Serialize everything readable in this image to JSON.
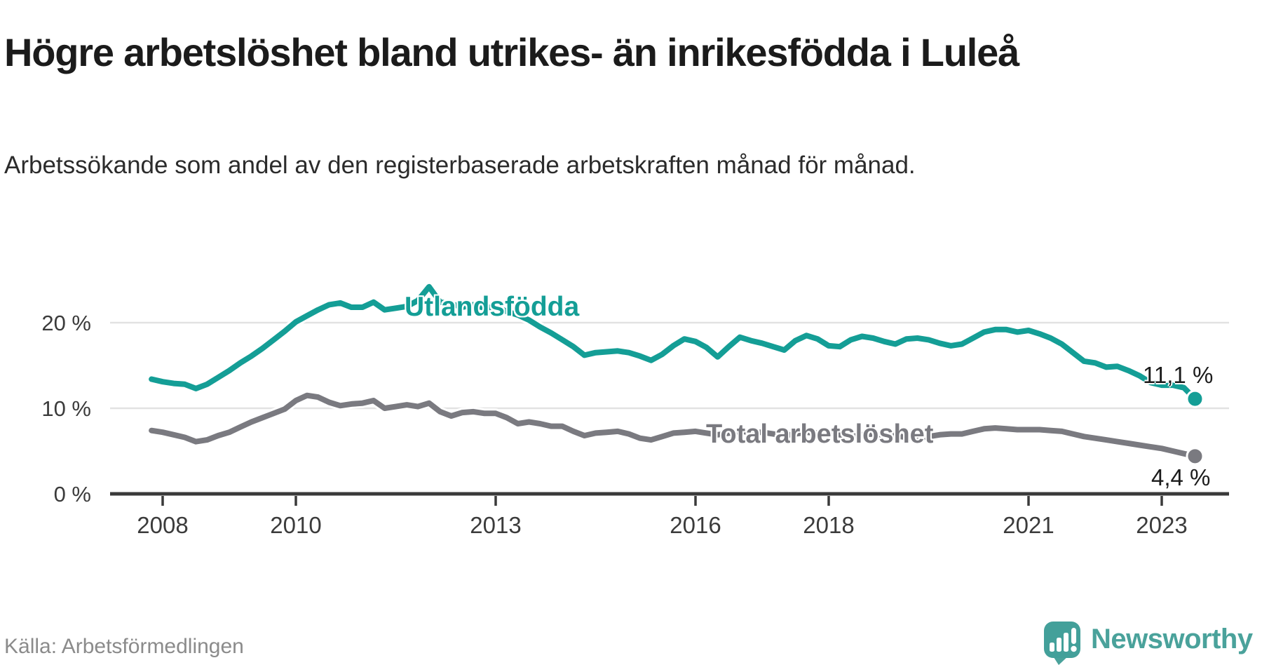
{
  "header": {
    "title": "Högre arbetslöshet bland utrikes- än inrikesfödda i Luleå",
    "subtitle": "Arbetssökande som andel av den registerbaserade arbetskraften månad för månad."
  },
  "footer": {
    "source": "Källa: Arbetsförmedlingen",
    "brand_name": "Newsworthy"
  },
  "colors": {
    "accent_teal": "#149e96",
    "series_gray": "#7a7a80",
    "gridline": "#e2e2e2",
    "axis": "#3a3a3a",
    "axis_text": "#3b3b3b",
    "title_text": "#1b1b1b",
    "muted_text": "#8b8b8b",
    "brand_teal": "#4aa29b"
  },
  "chart_data": {
    "type": "line",
    "title": "Högre arbetslöshet bland utrikes- än inrikesfödda i Luleå",
    "xlabel": "",
    "ylabel": "",
    "x_start": 2007.833,
    "x_step": 0.166667,
    "xlim": [
      2007.2,
      2024.0
    ],
    "ylim": [
      0,
      25
    ],
    "grid": true,
    "legend_position": "inline-labels",
    "x_ticks": [
      2008,
      2010,
      2013,
      2016,
      2018,
      2021,
      2023
    ],
    "x_tick_labels": [
      "2008",
      "2010",
      "2013",
      "2016",
      "2018",
      "2021",
      "2023"
    ],
    "y_ticks": [
      0,
      10,
      20
    ],
    "y_tick_labels": [
      "0 %",
      "10 %",
      "20 %"
    ],
    "series": [
      {
        "name": "Utlandsfödda",
        "color": "#149e96",
        "end_label": "11,1 %",
        "end_value": 11.1,
        "values": [
          13.4,
          13.1,
          12.9,
          12.8,
          12.3,
          12.8,
          13.6,
          14.4,
          15.3,
          16.1,
          17.0,
          18.0,
          19.0,
          20.1,
          20.8,
          21.5,
          22.1,
          22.3,
          21.8,
          21.8,
          22.4,
          21.5,
          21.7,
          21.9,
          22.6,
          24.2,
          22.4,
          22.2,
          21.8,
          22.1,
          21.7,
          21.9,
          21.3,
          20.9,
          20.3,
          19.5,
          18.8,
          18.0,
          17.2,
          16.2,
          16.5,
          16.6,
          16.7,
          16.5,
          16.1,
          15.6,
          16.3,
          17.3,
          18.1,
          17.8,
          17.1,
          16.0,
          17.2,
          18.3,
          17.9,
          17.6,
          17.2,
          16.8,
          17.9,
          18.5,
          18.1,
          17.3,
          17.2,
          18.0,
          18.4,
          18.2,
          17.8,
          17.5,
          18.1,
          18.2,
          18.0,
          17.6,
          17.3,
          17.5,
          18.2,
          18.9,
          19.2,
          19.2,
          18.9,
          19.1,
          18.7,
          18.2,
          17.5,
          16.5,
          15.5,
          15.3,
          14.8,
          14.9,
          14.4,
          13.8,
          13.0,
          12.7,
          12.7,
          12.4,
          11.1
        ]
      },
      {
        "name": "Total arbetslöshet",
        "color": "#7a7a80",
        "end_label": "4,4 %",
        "end_value": 4.4,
        "values": [
          7.4,
          7.2,
          6.9,
          6.6,
          6.1,
          6.3,
          6.8,
          7.2,
          7.8,
          8.4,
          8.9,
          9.4,
          9.9,
          10.9,
          11.5,
          11.3,
          10.7,
          10.3,
          10.5,
          10.6,
          10.9,
          10.0,
          10.2,
          10.4,
          10.2,
          10.6,
          9.6,
          9.1,
          9.5,
          9.6,
          9.4,
          9.4,
          8.9,
          8.2,
          8.4,
          8.2,
          7.9,
          7.9,
          7.3,
          6.8,
          7.1,
          7.2,
          7.3,
          7.0,
          6.5,
          6.3,
          6.7,
          7.1,
          7.2,
          7.3,
          7.1,
          6.9,
          7.1,
          7.3,
          7.2,
          7.2,
          7.0,
          6.8,
          7.0,
          7.2,
          7.1,
          7.1,
          6.9,
          6.7,
          6.9,
          7.0,
          6.9,
          6.8,
          6.6,
          6.5,
          6.7,
          6.9,
          7.0,
          7.0,
          7.3,
          7.6,
          7.7,
          7.6,
          7.5,
          7.5,
          7.5,
          7.4,
          7.3,
          7.0,
          6.7,
          6.5,
          6.3,
          6.1,
          5.9,
          5.7,
          5.5,
          5.3,
          5.0,
          4.7,
          4.4
        ]
      }
    ]
  }
}
